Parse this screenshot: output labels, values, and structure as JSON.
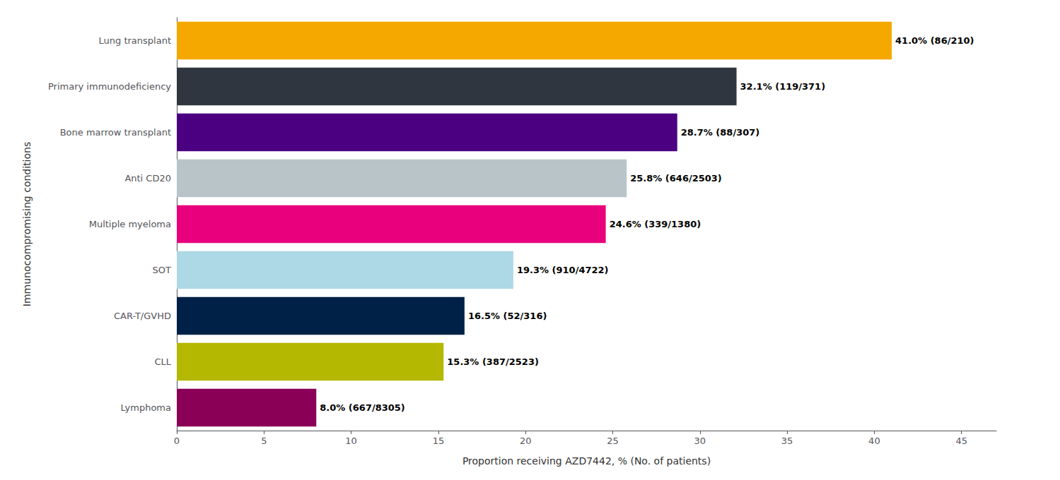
{
  "chart_data": {
    "type": "bar",
    "orientation": "horizontal",
    "xlabel": "Proportion receiving AZD7442, % (No. of patients)",
    "ylabel": "Immunocompromising conditions",
    "categories": [
      "Lymphoma",
      "CLL",
      "CAR-T/GVHD",
      "SOT",
      "Multiple myeloma",
      "Anti CD20",
      "Bone marrow transplant",
      "Primary immunodeficiency",
      "Lung transplant"
    ],
    "values": [
      8.0,
      15.3,
      16.5,
      19.3,
      24.6,
      25.8,
      28.7,
      32.1,
      41.0
    ],
    "value_labels": [
      "8.0% (667/8305)",
      "15.3% (387/2523)",
      "16.5% (52/316)",
      "19.3% (910/4722)",
      "24.6% (339/1380)",
      "25.8% (646/2503)",
      "28.7% (88/307)",
      "32.1% (119/371)",
      "41.0% (86/210)"
    ],
    "data_labels": true,
    "colors": [
      "#8B0057",
      "#B5B800",
      "#002147",
      "#ADD8E6",
      "#E8007D",
      "#B8C4C8",
      "#4B0082",
      "#2F3640",
      "#F5A800"
    ],
    "xlim": [
      0,
      47
    ],
    "xticks": [
      0,
      5,
      10,
      15,
      20,
      25,
      30,
      35,
      40,
      45
    ],
    "grid": false
  }
}
